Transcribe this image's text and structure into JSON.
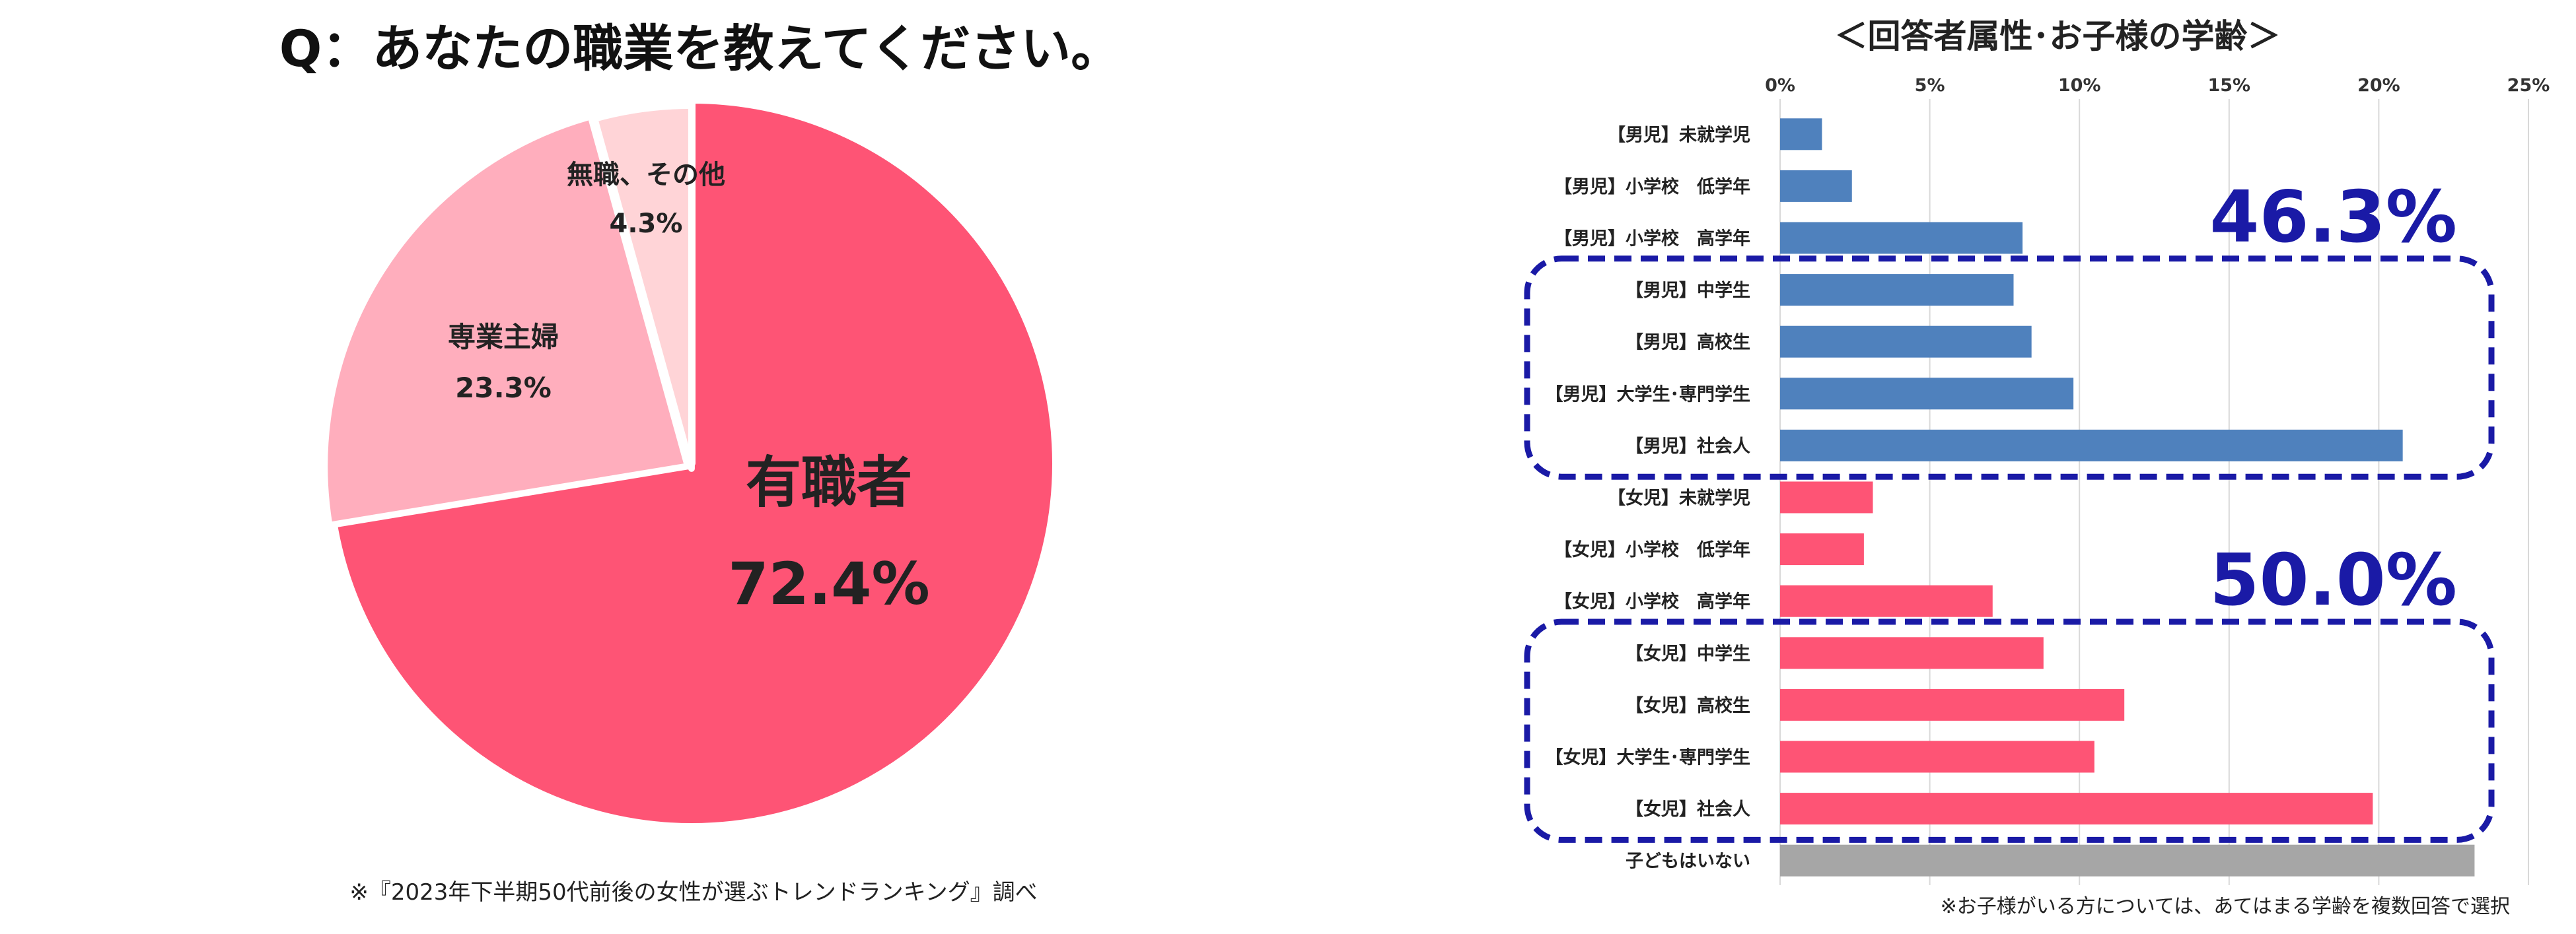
{
  "chart_data": [
    {
      "type": "pie",
      "title": "Q：あなたの職業を教えてください。",
      "footnote": "※『2023年下半期50代前後の女性が選ぶトレンドランキング』調べ",
      "slices": [
        {
          "label": "有職者",
          "value": 72.4,
          "value_label": "72.4%",
          "color": "#fe5475"
        },
        {
          "label": "専業主婦",
          "value": 23.3,
          "value_label": "23.3%",
          "color": "#ffaebd"
        },
        {
          "label": "無職、その他",
          "value": 4.3,
          "value_label": "4.3%",
          "color": "#ffd4d7"
        }
      ]
    },
    {
      "type": "bar",
      "orientation": "horizontal",
      "title": "＜回答者属性･お子様の学齢＞",
      "xlim": [
        0,
        25
      ],
      "x_ticks": [
        "0%",
        "5%",
        "10%",
        "15%",
        "20%",
        "25%"
      ],
      "x_tick_values": [
        0,
        5,
        10,
        15,
        20,
        25
      ],
      "grid": true,
      "categories": [
        "【男児】未就学児",
        "【男児】小学校　低学年",
        "【男児】小学校　高学年",
        "【男児】中学生",
        "【男児】高校生",
        "【男児】大学生･専門学生",
        "【男児】社会人",
        "【女児】未就学児",
        "【女児】小学校　低学年",
        "【女児】小学校　高学年",
        "【女児】中学生",
        "【女児】高校生",
        "【女児】大学生･専門学生",
        "【女児】社会人",
        "子どもはいない"
      ],
      "values": [
        1.4,
        2.4,
        8.1,
        7.8,
        8.4,
        9.8,
        20.8,
        3.1,
        2.8,
        7.1,
        8.8,
        11.5,
        10.5,
        19.8,
        23.2
      ],
      "colors": [
        "#4f81bd",
        "#4f81bd",
        "#4f81bd",
        "#4f81bd",
        "#4f81bd",
        "#4f81bd",
        "#4f81bd",
        "#fe5475",
        "#fe5475",
        "#fe5475",
        "#fe5475",
        "#fe5475",
        "#fe5475",
        "#fe5475",
        "#a6a6a6"
      ],
      "group_annotations": [
        {
          "text": "46.3%",
          "from_index": 3,
          "to_index": 6
        },
        {
          "text": "50.0%",
          "from_index": 10,
          "to_index": 13
        }
      ],
      "footnote": "※お子様がいる方については、あてはまる学齢を複数回答で選択"
    }
  ]
}
